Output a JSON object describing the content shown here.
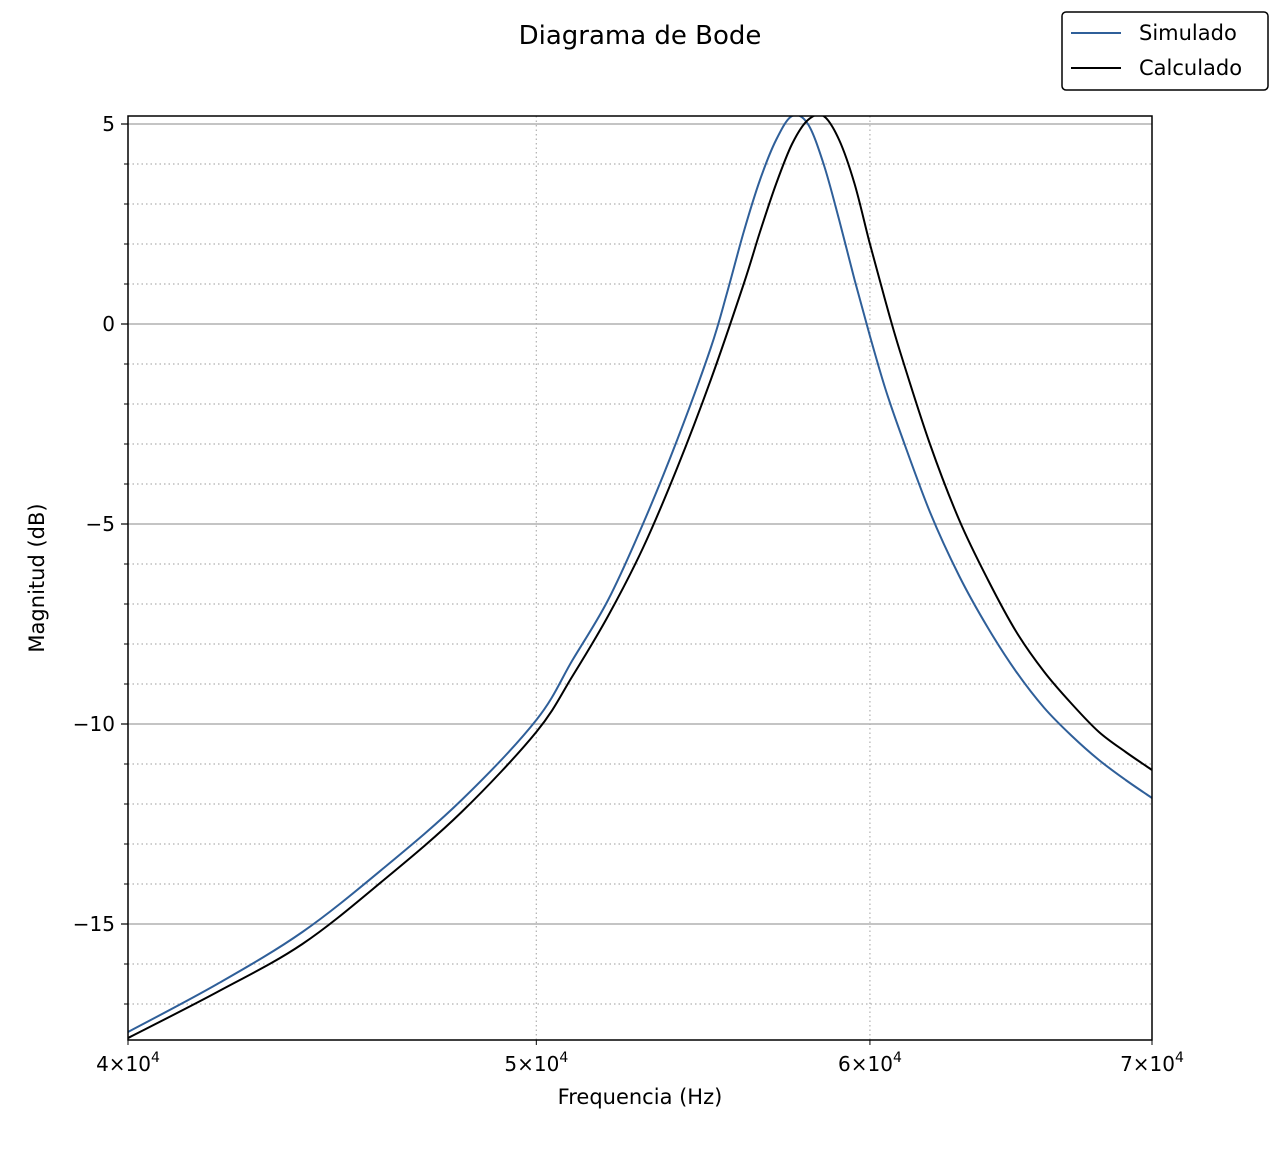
{
  "chart_data": {
    "type": "line",
    "title": "Diagrama de Bode",
    "xlabel": "Frequencia (Hz)",
    "ylabel": "Magnitud (dB)",
    "xscale": "log",
    "xlim": [
      40000,
      70000
    ],
    "ylim": [
      -17.9,
      5.2
    ],
    "x_ticks": [
      {
        "value": 40000,
        "mantissa": "4",
        "base": "10",
        "exp": "4"
      },
      {
        "value": 50000,
        "mantissa": "5",
        "base": "10",
        "exp": "4"
      },
      {
        "value": 60000,
        "mantissa": "6",
        "base": "10",
        "exp": "4"
      },
      {
        "value": 70000,
        "mantissa": "7",
        "base": "10",
        "exp": "4"
      }
    ],
    "y_ticks": [
      {
        "value": 5,
        "label": "5"
      },
      {
        "value": 0,
        "label": "0"
      },
      {
        "value": -5,
        "label": "−5"
      },
      {
        "value": -10,
        "label": "−10"
      },
      {
        "value": -15,
        "label": "−15"
      }
    ],
    "grid": {
      "major": true,
      "minor": true,
      "minor_style": "dotted"
    },
    "legend": {
      "position": "top-right",
      "outside": true
    },
    "series": [
      {
        "name": "Simulado",
        "color": "#2f5f99",
        "x": [
          40000,
          42000,
          44000,
          46000,
          48000,
          50000,
          51000,
          52000,
          53000,
          54000,
          55000,
          55500,
          56000,
          56500,
          57000,
          57500,
          58000,
          58500,
          59000,
          59500,
          60000,
          60500,
          61000,
          62000,
          63000,
          64000,
          65000,
          66000,
          67000,
          68000,
          69000,
          70000
        ],
        "y": [
          -17.7,
          -16.5,
          -15.2,
          -13.6,
          -11.9,
          -9.9,
          -8.4,
          -6.9,
          -5.0,
          -2.9,
          -0.6,
          0.8,
          2.3,
          3.6,
          4.6,
          5.2,
          5.0,
          4.0,
          2.6,
          1.1,
          -0.3,
          -1.6,
          -2.7,
          -4.7,
          -6.3,
          -7.6,
          -8.7,
          -9.6,
          -10.3,
          -10.9,
          -11.4,
          -11.85
        ]
      },
      {
        "name": "Calculado",
        "color": "#000000",
        "x": [
          40000,
          42000,
          44000,
          46000,
          48000,
          50000,
          51000,
          52000,
          53000,
          54000,
          55000,
          56000,
          56500,
          57000,
          57500,
          58000,
          58500,
          59000,
          59500,
          60000,
          60500,
          61000,
          62000,
          63000,
          64000,
          65000,
          66000,
          67000,
          68000,
          69000,
          70000
        ],
        "y": [
          -17.85,
          -16.7,
          -15.5,
          -13.9,
          -12.2,
          -10.2,
          -8.8,
          -7.3,
          -5.6,
          -3.6,
          -1.4,
          1.0,
          2.3,
          3.5,
          4.5,
          5.1,
          5.2,
          4.6,
          3.5,
          2.0,
          0.6,
          -0.7,
          -3.0,
          -4.9,
          -6.4,
          -7.7,
          -8.7,
          -9.5,
          -10.2,
          -10.7,
          -11.15
        ]
      }
    ]
  }
}
